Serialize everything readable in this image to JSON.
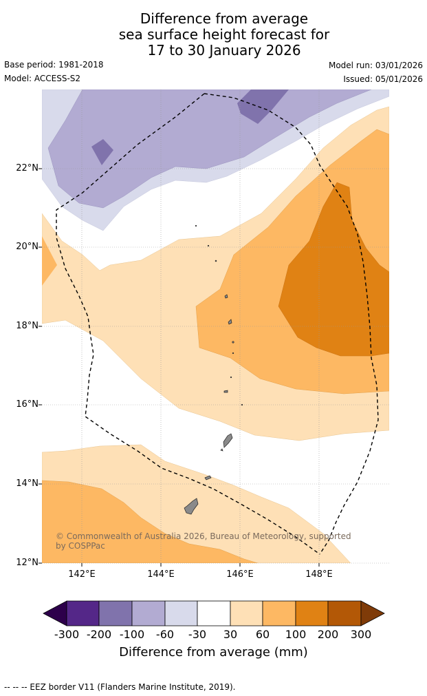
{
  "title": {
    "line1": "Difference from average",
    "line2": "sea surface height forecast for",
    "line3": "17 to 30 January 2026"
  },
  "meta": {
    "base_period": "Base period: 1981-2018",
    "model": "Model: ACCESS-S2",
    "model_run": "Model run: 03/01/2026",
    "issued": "Issued: 05/01/2026"
  },
  "map": {
    "lat_labels": [
      "22°N",
      "20°N",
      "18°N",
      "16°N",
      "14°N",
      "12°N"
    ],
    "lon_labels": [
      "142°E",
      "144°E",
      "146°E",
      "148°E"
    ],
    "copyright": "© Commonwealth of Australia 2026, Bureau of Meteorology, supported by COSPPac"
  },
  "colorbar": {
    "ticks": [
      "-300",
      "-200",
      "-100",
      "-60",
      "-30",
      "30",
      "60",
      "100",
      "200",
      "300"
    ],
    "colors": {
      "below_min": "#2d004b",
      "m300_m200": "#542788",
      "m200_m100": "#8073ac",
      "m100_m60": "#b2abd2",
      "m60_m30": "#d8daeb",
      "m30_p30": "#ffffff",
      "p30_p60": "#fee0b6",
      "p60_p100": "#fdb863",
      "p100_p200": "#e08214",
      "p200_p300": "#b35806",
      "above_max": "#7f3b08"
    },
    "title": "Difference from average (mm)"
  },
  "legend": {
    "eez": "--  --  -- EEZ border V11 (Flanders Marine Institute, 2019)."
  }
}
